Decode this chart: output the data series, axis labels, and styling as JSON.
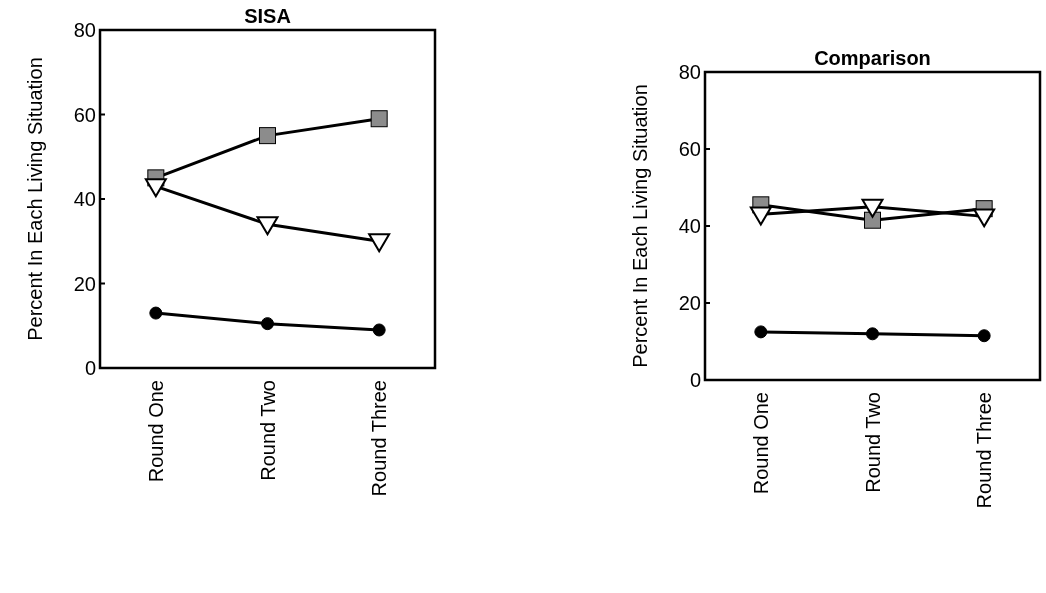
{
  "chart_data": [
    {
      "type": "line",
      "title": "SISA",
      "ylabel": "Percent In Each Living Situation",
      "categories": [
        "Round One",
        "Round Two",
        "Round Three"
      ],
      "ylim": [
        0,
        80
      ],
      "yticks": [
        0,
        20,
        40,
        60,
        80
      ],
      "grid": false,
      "series": [
        {
          "color": "#8c8c8c",
          "marker": "square",
          "values": [
            45,
            55,
            59
          ]
        },
        {
          "color": "#ffffff",
          "marker": "triangle",
          "values": [
            43,
            34,
            30
          ]
        },
        {
          "color": "#000000",
          "marker": "circle",
          "values": [
            13,
            10.5,
            9
          ]
        }
      ]
    },
    {
      "type": "line",
      "title": "Comparison",
      "ylabel": "Percent In Each Living Situation",
      "categories": [
        "Round One",
        "Round Two",
        "Round Three"
      ],
      "ylim": [
        0,
        80
      ],
      "yticks": [
        0,
        20,
        40,
        60,
        80
      ],
      "grid": false,
      "series": [
        {
          "color": "#8c8c8c",
          "marker": "square",
          "values": [
            45.5,
            41.5,
            44.5
          ]
        },
        {
          "color": "#ffffff",
          "marker": "triangle",
          "values": [
            43,
            45,
            42.5
          ]
        },
        {
          "color": "#000000",
          "marker": "circle",
          "values": [
            12.5,
            12,
            11.5
          ]
        }
      ]
    }
  ]
}
